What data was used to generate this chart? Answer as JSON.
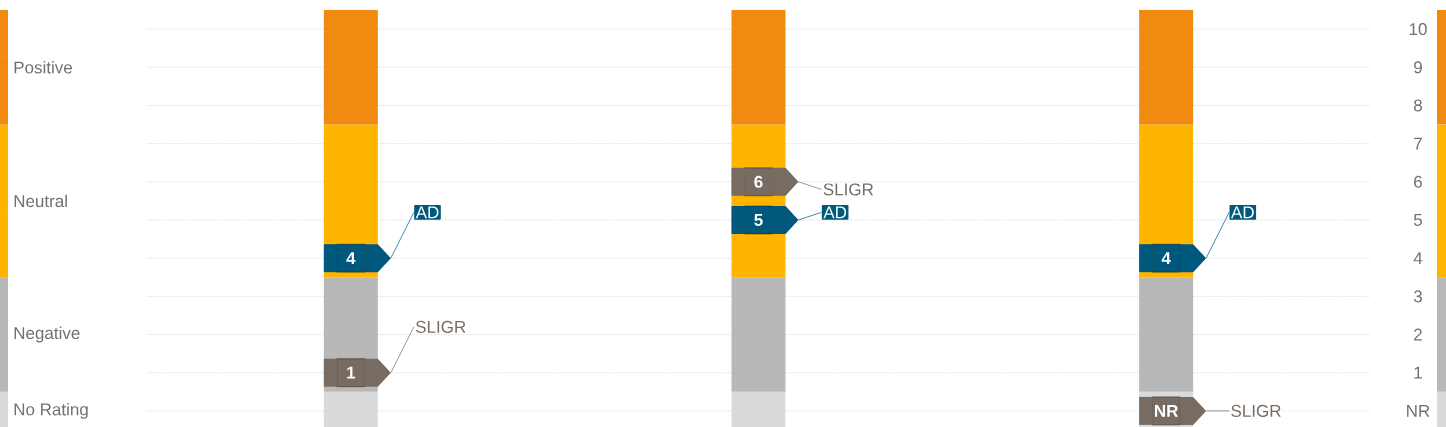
{
  "chart_data": {
    "type": "bar",
    "categories": [
      null,
      null,
      null
    ],
    "series": [
      {
        "name": "No Rating",
        "color": "#dadada",
        "values": [
          1,
          1,
          1
        ],
        "base": [
          -0.5,
          -0.5,
          -0.5
        ]
      },
      {
        "name": "Negative",
        "color": "#b8b8b8",
        "values": [
          3,
          3,
          3
        ],
        "base": [
          0.5,
          0.5,
          0.5
        ]
      },
      {
        "name": "Neutral",
        "color": "#ffb400",
        "values": [
          4,
          4,
          4
        ],
        "base": [
          3.5,
          3.5,
          3.5
        ]
      },
      {
        "name": "Positive",
        "color": "#f08a10",
        "values": [
          3,
          3,
          3
        ],
        "base": [
          7.5,
          7.5,
          7.5
        ]
      },
      {
        "name": "AD",
        "type": "scatter",
        "color": "#00587c",
        "values": [
          4,
          5,
          4
        ],
        "value_labels": [
          "4",
          "5",
          "4"
        ]
      },
      {
        "name": "SLIGR",
        "type": "scatter",
        "color": "#776b62",
        "values": [
          1,
          6,
          0
        ],
        "value_labels": [
          "1",
          "6",
          "NR"
        ]
      }
    ],
    "ylim": [
      -0.5,
      10.5
    ],
    "yticks": [
      {
        "value": 0,
        "label": "NR"
      },
      1,
      2,
      3,
      4,
      5,
      6,
      7,
      8,
      9,
      10
    ],
    "grid": "y",
    "legend": "left"
  }
}
